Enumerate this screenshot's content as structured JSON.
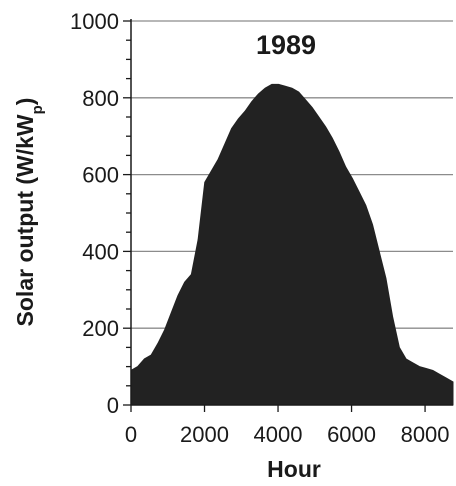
{
  "chart_data": {
    "type": "bar",
    "title": "1989",
    "xlabel": "Hour",
    "ylabel": "Solar output (W/kW",
    "ylabel_sub": "p",
    "ylabel_close": ")",
    "xlim": [
      0,
      8760
    ],
    "ylim": [
      0,
      1000
    ],
    "xticks": [
      0,
      2000,
      4000,
      6000,
      8000
    ],
    "xtick_labels": [
      "0",
      "2000",
      "4000",
      "6000",
      "8000"
    ],
    "yticks": [
      0,
      200,
      400,
      600,
      800,
      1000
    ],
    "ytick_labels": [
      "0",
      "200",
      "400",
      "600",
      "800",
      "1000"
    ],
    "y_minor_step": 50,
    "grid": "horizontal",
    "legend": "none",
    "series": [
      {
        "color": "#222222",
        "x": [
          0,
          182,
          365,
          547,
          730,
          912,
          1095,
          1277,
          1460,
          1642,
          1825,
          2007,
          2190,
          2372,
          2555,
          2737,
          2920,
          3102,
          3285,
          3467,
          3650,
          3832,
          4015,
          4197,
          4380,
          4562,
          4745,
          4927,
          5110,
          5292,
          5475,
          5657,
          5840,
          6022,
          6205,
          6387,
          6570,
          6752,
          6935,
          7117,
          7300,
          7482,
          7665,
          7847,
          8030,
          8212,
          8395,
          8577,
          8760
        ],
        "values": [
          90,
          100,
          120,
          130,
          160,
          195,
          240,
          285,
          320,
          340,
          430,
          580,
          610,
          640,
          680,
          720,
          745,
          765,
          790,
          810,
          825,
          835,
          835,
          830,
          825,
          815,
          795,
          775,
          750,
          725,
          695,
          660,
          620,
          590,
          555,
          520,
          470,
          400,
          330,
          230,
          150,
          120,
          110,
          100,
          95,
          90,
          80,
          70,
          60
        ]
      }
    ]
  }
}
